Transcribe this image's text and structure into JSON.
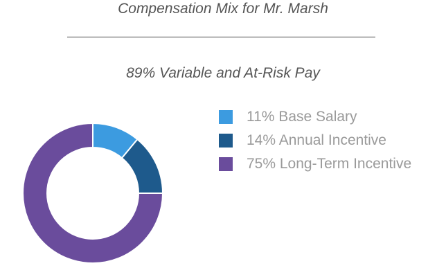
{
  "chart_data": {
    "type": "pie",
    "title": "Compensation Mix for Mr. Marsh",
    "subtitle": "89% Variable and At-Risk Pay",
    "slices": [
      {
        "label": "11% Base Salary",
        "value": 11,
        "color": "#3c9be0"
      },
      {
        "label": "14% Annual Incentive",
        "value": 14,
        "color": "#1e5a8c"
      },
      {
        "label": "75% Long-Term Incentive",
        "value": 75,
        "color": "#6a4c9c"
      }
    ],
    "legend_position": "right"
  }
}
